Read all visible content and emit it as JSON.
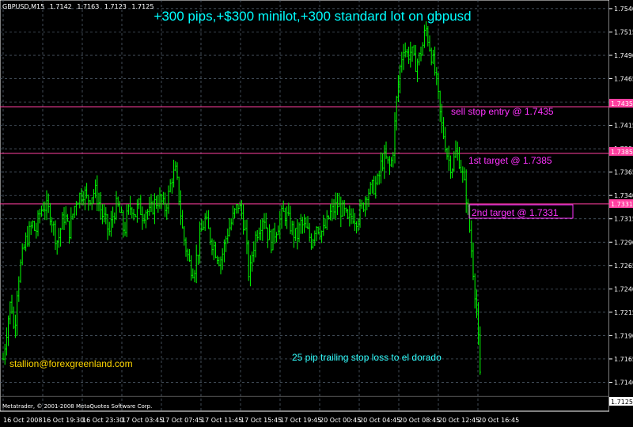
{
  "symbol_header": {
    "symbol": "GBPUSD,M15",
    "open": "1.7142",
    "high": "1.7163",
    "low": "1.7123",
    "close": "1.7125"
  },
  "title": "+300 pips,+$300 minilot,+300 standard lot on gbpusd",
  "annotations": {
    "sell_stop": "sell stop entry @ 1.7435",
    "target1": "1st target @ 1.7385",
    "target2": "2nd target @ 1.7331",
    "trailing": "25 pip trailing stop loss to el dorado",
    "email": "stallion@forexgreenland.com",
    "copyright": "Metatrader, © 2001-2008 MetaQuotes Software Corp."
  },
  "price_labels": {
    "line1": "1.7435",
    "line2": "1.7385",
    "line3": "1.7331",
    "current": "1.7125"
  },
  "colors": {
    "background": "#000000",
    "grid": "#5a6a7a",
    "candle": "#00ff00",
    "level_line": "#ff3fa0",
    "title": "#00ffff",
    "annotation_magenta": "#ff33ff",
    "annotation_cyan": "#33ffff",
    "email": "#ffd700",
    "axis_text": "#ffffff"
  },
  "chart_data": {
    "type": "candlestick",
    "y_ticks": [
      "1.7540",
      "1.7515",
      "1.7490",
      "1.7465",
      "1.7440",
      "1.7415",
      "1.7390",
      "1.7365",
      "1.7340",
      "1.7315",
      "1.7290",
      "1.7265",
      "1.7240",
      "1.7215",
      "1.7190",
      "1.7165",
      "1.7140"
    ],
    "x_ticks": [
      "16 Oct 2008",
      "16 Oct 19:30",
      "16 Oct 23:30",
      "17 Oct 03:45",
      "17 Oct 07:45",
      "17 Oct 11:45",
      "17 Oct 15:45",
      "17 Oct 19:45",
      "20 Oct 00:45",
      "20 Oct 04:45",
      "20 Oct 08:45",
      "20 Oct 12:45",
      "20 Oct 16:45"
    ],
    "levels": [
      1.7435,
      1.7385,
      1.7331
    ],
    "ylim": [
      1.7115,
      1.7545
    ],
    "close_path": [
      [
        0,
        1.714
      ],
      [
        4,
        1.7165
      ],
      [
        9,
        1.72
      ],
      [
        14,
        1.723
      ],
      [
        18,
        1.719
      ],
      [
        22,
        1.7245
      ],
      [
        27,
        1.727
      ],
      [
        32,
        1.729
      ],
      [
        37,
        1.73
      ],
      [
        41,
        1.731
      ],
      [
        45,
        1.73
      ],
      [
        50,
        1.732
      ],
      [
        55,
        1.733
      ],
      [
        60,
        1.7325
      ],
      [
        64,
        1.732
      ],
      [
        69,
        1.73
      ],
      [
        73,
        1.729
      ],
      [
        78,
        1.731
      ],
      [
        82,
        1.732
      ],
      [
        87,
        1.73
      ],
      [
        92,
        1.732
      ],
      [
        96,
        1.7335
      ],
      [
        101,
        1.734
      ],
      [
        106,
        1.7345
      ],
      [
        110,
        1.7335
      ],
      [
        115,
        1.734
      ],
      [
        120,
        1.7345
      ],
      [
        124,
        1.7335
      ],
      [
        129,
        1.732
      ],
      [
        134,
        1.731
      ],
      [
        138,
        1.73
      ],
      [
        143,
        1.732
      ],
      [
        148,
        1.733
      ],
      [
        152,
        1.732
      ],
      [
        157,
        1.73
      ],
      [
        161,
        1.732
      ],
      [
        166,
        1.733
      ],
      [
        171,
        1.732
      ],
      [
        175,
        1.733
      ],
      [
        180,
        1.732
      ],
      [
        185,
        1.7325
      ],
      [
        189,
        1.732
      ],
      [
        194,
        1.733
      ],
      [
        199,
        1.7335
      ],
      [
        203,
        1.7335
      ],
      [
        208,
        1.7325
      ],
      [
        213,
        1.734
      ],
      [
        217,
        1.736
      ],
      [
        222,
        1.7365
      ],
      [
        226,
        1.734
      ],
      [
        231,
        1.73
      ],
      [
        236,
        1.728
      ],
      [
        240,
        1.7265
      ],
      [
        245,
        1.726
      ],
      [
        250,
        1.728
      ],
      [
        254,
        1.73
      ],
      [
        259,
        1.7315
      ],
      [
        264,
        1.73
      ],
      [
        268,
        1.729
      ],
      [
        273,
        1.728
      ],
      [
        278,
        1.727
      ],
      [
        282,
        1.728
      ],
      [
        287,
        1.73
      ],
      [
        292,
        1.731
      ],
      [
        296,
        1.732
      ],
      [
        301,
        1.733
      ],
      [
        306,
        1.732
      ],
      [
        310,
        1.73
      ],
      [
        315,
        1.725
      ],
      [
        319,
        1.728
      ],
      [
        324,
        1.73
      ],
      [
        329,
        1.731
      ],
      [
        333,
        1.732
      ],
      [
        338,
        1.73
      ],
      [
        343,
        1.729
      ],
      [
        347,
        1.73
      ],
      [
        352,
        1.731
      ],
      [
        357,
        1.732
      ],
      [
        361,
        1.732
      ],
      [
        366,
        1.731
      ],
      [
        371,
        1.73
      ],
      [
        375,
        1.7295
      ],
      [
        380,
        1.731
      ],
      [
        385,
        1.7305
      ],
      [
        389,
        1.73
      ],
      [
        394,
        1.729
      ],
      [
        399,
        1.731
      ],
      [
        403,
        1.7305
      ],
      [
        408,
        1.73
      ],
      [
        413,
        1.731
      ],
      [
        417,
        1.732
      ],
      [
        422,
        1.7325
      ],
      [
        426,
        1.733
      ],
      [
        431,
        1.7325
      ],
      [
        436,
        1.732
      ],
      [
        440,
        1.731
      ],
      [
        445,
        1.732
      ],
      [
        450,
        1.7315
      ],
      [
        454,
        1.732
      ],
      [
        459,
        1.733
      ],
      [
        464,
        1.7345
      ],
      [
        468,
        1.7345
      ],
      [
        473,
        1.735
      ],
      [
        478,
        1.7355
      ],
      [
        482,
        1.7375
      ],
      [
        487,
        1.738
      ],
      [
        492,
        1.737
      ],
      [
        496,
        1.738
      ],
      [
        501,
        1.744
      ],
      [
        506,
        1.748
      ],
      [
        510,
        1.75
      ],
      [
        515,
        1.749
      ],
      [
        520,
        1.7495
      ],
      [
        524,
        1.748
      ],
      [
        529,
        1.7485
      ],
      [
        534,
        1.75
      ],
      [
        538,
        1.752
      ],
      [
        543,
        1.75
      ],
      [
        548,
        1.748
      ],
      [
        552,
        1.746
      ],
      [
        557,
        1.742
      ],
      [
        562,
        1.74
      ],
      [
        566,
        1.738
      ],
      [
        571,
        1.737
      ],
      [
        576,
        1.7385
      ],
      [
        580,
        1.738
      ],
      [
        585,
        1.736
      ],
      [
        590,
        1.7335
      ],
      [
        594,
        1.73
      ],
      [
        599,
        1.725
      ],
      [
        603,
        1.721
      ],
      [
        608,
        1.7125
      ]
    ]
  }
}
